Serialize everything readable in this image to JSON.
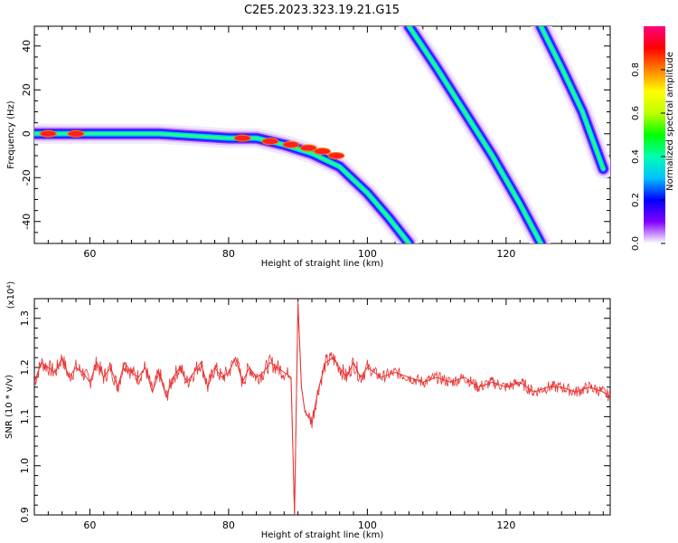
{
  "figure_title": "C2E5.2023.323.19.21.G15",
  "chart_data": [
    {
      "type": "heatmap",
      "title": "",
      "xlabel": "Height of straight line (km)",
      "ylabel": "Frequency (Hz)",
      "xlim": [
        52,
        135
      ],
      "ylim": [
        -50,
        49
      ],
      "xticks": [
        60,
        80,
        100,
        120
      ],
      "yticks": [
        -40,
        -20,
        0,
        20,
        40
      ],
      "grid": false,
      "colorbar": {
        "label": "Normalized spectral amplitude",
        "range": [
          0,
          1
        ],
        "ticks": [
          "0.0",
          "0.2",
          "0.4",
          "0.6",
          "0.8"
        ],
        "colors": [
          "#ffffff",
          "#8000ff",
          "#0000ff",
          "#00c0ff",
          "#00ffb0",
          "#00ff00",
          "#c0ff00",
          "#ffff00",
          "#ff8000",
          "#ff0000",
          "#ff0080"
        ]
      },
      "traces": [
        {
          "name": "main",
          "points": [
            [
              52,
              0
            ],
            [
              60,
              0
            ],
            [
              70,
              0
            ],
            [
              80,
              -2
            ],
            [
              84,
              -2
            ],
            [
              88,
              -5
            ],
            [
              92,
              -9
            ],
            [
              96,
              -15
            ],
            [
              100,
              -27
            ],
            [
              103,
              -38
            ],
            [
              106,
              -50
            ]
          ]
        },
        {
          "name": "alias-1",
          "points": [
            [
              106,
              49
            ],
            [
              110,
              30
            ],
            [
              114,
              10
            ],
            [
              118,
              -10
            ],
            [
              122,
              -32
            ],
            [
              125,
              -50
            ]
          ]
        },
        {
          "name": "alias-2",
          "points": [
            [
              125,
              49
            ],
            [
              128,
              30
            ],
            [
              131,
              10
            ],
            [
              134,
              -16
            ]
          ]
        }
      ],
      "hotspots": [
        [
          54,
          0
        ],
        [
          58,
          0
        ],
        [
          82,
          -2
        ],
        [
          86,
          -3.5
        ],
        [
          89,
          -5
        ],
        [
          91.5,
          -6.5
        ],
        [
          93.5,
          -8
        ],
        [
          95.5,
          -10
        ]
      ]
    },
    {
      "type": "line",
      "title": "",
      "xlabel": "Height of straight line (km)",
      "ylabel": "SNR (10 * v/v)",
      "yexponent_label": "(x10⁴)",
      "xlim": [
        52,
        135
      ],
      "ylim": [
        0.9,
        1.34
      ],
      "xticks": [
        60,
        80,
        100,
        120
      ],
      "yticks": [
        "0.9",
        "1.0",
        "1.1",
        "1.2",
        "1.3"
      ],
      "grid": false,
      "series": [
        {
          "color": "#e83232",
          "x": [
            52,
            53,
            54,
            55,
            56,
            57,
            58,
            59,
            60,
            61,
            62,
            63,
            64,
            65,
            66,
            67,
            68,
            69,
            70,
            71,
            72,
            73,
            74,
            75,
            76,
            77,
            78,
            79,
            80,
            81,
            82,
            83,
            84,
            85,
            86,
            87,
            88,
            89,
            89.5,
            90,
            90.5,
            91,
            92,
            93,
            94,
            95,
            96,
            97,
            98,
            99,
            100,
            102,
            104,
            106,
            108,
            110,
            112,
            114,
            116,
            118,
            120,
            122,
            124,
            126,
            128,
            130,
            132,
            134,
            135
          ],
          "y": [
            1.17,
            1.21,
            1.2,
            1.19,
            1.22,
            1.18,
            1.2,
            1.19,
            1.17,
            1.21,
            1.18,
            1.2,
            1.16,
            1.21,
            1.19,
            1.18,
            1.2,
            1.15,
            1.19,
            1.14,
            1.18,
            1.2,
            1.17,
            1.19,
            1.21,
            1.16,
            1.2,
            1.18,
            1.19,
            1.22,
            1.17,
            1.2,
            1.18,
            1.19,
            1.21,
            1.2,
            1.19,
            1.18,
            0.9,
            1.33,
            1.16,
            1.11,
            1.09,
            1.16,
            1.21,
            1.22,
            1.2,
            1.18,
            1.21,
            1.18,
            1.2,
            1.18,
            1.19,
            1.18,
            1.17,
            1.18,
            1.17,
            1.18,
            1.16,
            1.17,
            1.16,
            1.17,
            1.15,
            1.16,
            1.16,
            1.15,
            1.16,
            1.15,
            1.14
          ]
        }
      ]
    }
  ]
}
